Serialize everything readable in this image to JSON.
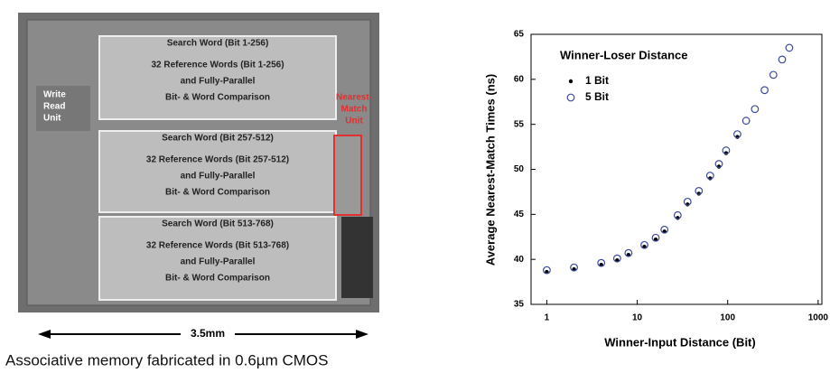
{
  "photo": {
    "blocks": [
      {
        "header": "Search Word (Bit 1-256)",
        "lines": [
          "32 Reference Words (Bit 1-256)",
          "and Fully-Parallel",
          "Bit- & Word Comparison"
        ]
      },
      {
        "header": "Search Word (Bit 257-512)",
        "lines": [
          "32 Reference Words (Bit 257-512)",
          "and Fully-Parallel",
          "Bit- & Word Comparison"
        ]
      },
      {
        "header": "Search Word (Bit 513-768)",
        "lines": [
          "32 Reference Words (Bit 513-768)",
          "and Fully-Parallel",
          "Bit- & Word Comparison"
        ]
      }
    ],
    "unit_label": [
      "Write",
      "Read",
      "Unit"
    ],
    "match_label": [
      "Nearest-",
      "Match",
      "Unit"
    ],
    "scale": "3.5mm",
    "caption": "Associative memory fabricated in 0.6µm CMOS"
  },
  "chart_data": {
    "type": "scatter",
    "xlabel": "Winner-Input Distance (Bit)",
    "ylabel": "Average Nearest-Match Times (ns)",
    "legend_title": "Winner-Loser Distance",
    "xscale": "log",
    "xlim": [
      0.67,
      1100
    ],
    "xticks": [
      1,
      10,
      100,
      1000
    ],
    "ylim": [
      35,
      65
    ],
    "yticks": [
      35,
      40,
      45,
      50,
      55,
      60,
      65
    ],
    "series": [
      {
        "name": "1 Bit",
        "marker": "dot",
        "color": "#000000",
        "x": [
          1,
          2,
          4,
          6,
          8,
          12,
          16,
          20,
          28,
          36,
          48,
          64,
          80,
          96,
          128
        ],
        "values": [
          38.6,
          38.9,
          39.4,
          39.9,
          40.5,
          41.4,
          42.2,
          43.1,
          44.6,
          46.1,
          47.3,
          49.0,
          50.3,
          51.8,
          53.6
        ]
      },
      {
        "name": "5 Bit",
        "marker": "circle",
        "color": "#3a4a9a",
        "x": [
          1,
          2,
          4,
          6,
          8,
          12,
          16,
          20,
          28,
          36,
          48,
          64,
          80,
          96,
          128,
          160,
          200,
          256,
          320,
          400,
          480
        ],
        "values": [
          38.8,
          39.1,
          39.6,
          40.1,
          40.7,
          41.6,
          42.4,
          43.3,
          44.9,
          46.4,
          47.6,
          49.3,
          50.6,
          52.1,
          53.9,
          55.4,
          56.7,
          58.8,
          60.5,
          62.2,
          63.5
        ]
      }
    ]
  }
}
